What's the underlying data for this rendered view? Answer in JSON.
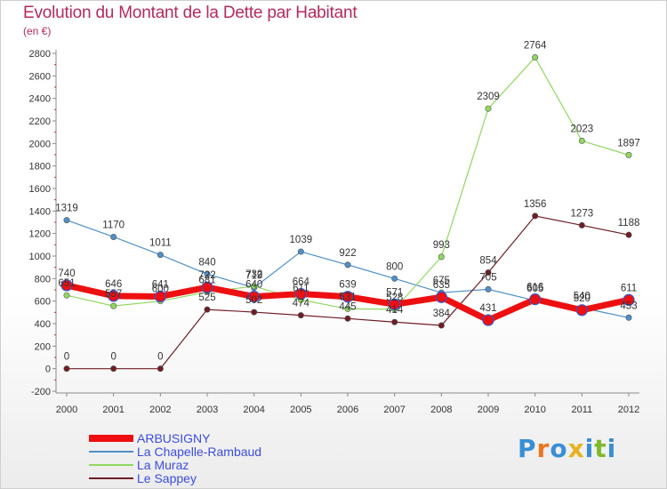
{
  "header": {
    "title": "Evolution du Montant de la Dette par Habitant",
    "subtitle": "(en €)"
  },
  "logo": {
    "text": "Proxiti",
    "colors": [
      "#3a8ed6",
      "#e8771f",
      "#3a8ed6",
      "#e8b21f",
      "#3a8ed6",
      "#7fb829",
      "#3a8ed6"
    ]
  },
  "chart_data": {
    "type": "line",
    "title": "Evolution du Montant de la Dette par Habitant",
    "subtitle": "(en €)",
    "x": [
      "2000",
      "2001",
      "2002",
      "2003",
      "2004",
      "2005",
      "2006",
      "2007",
      "2008",
      "2009",
      "2010",
      "2011",
      "2012"
    ],
    "ylim": [
      -200,
      2800
    ],
    "yticks": [
      -200,
      0,
      200,
      400,
      600,
      800,
      1000,
      1200,
      1400,
      1600,
      1800,
      2000,
      2200,
      2400,
      2600,
      2800
    ],
    "grid": false,
    "legend_position": "bottom-left",
    "series": [
      {
        "name": "La Chapelle-Rambaud",
        "color": "#4f90c8",
        "width": 1.2,
        "values": [
          1319,
          1170,
          1011,
          840,
          719,
          1039,
          922,
          800,
          675,
          705,
          605,
          540,
          453
        ]
      },
      {
        "name": "La Muraz",
        "color": "#90d860",
        "width": 1.2,
        "values": [
          651,
          557,
          600,
          681,
          732,
          611,
          531,
          528,
          993,
          2309,
          2764,
          2023,
          1897
        ]
      },
      {
        "name": "Le Sappey",
        "color": "#6e1e24",
        "width": 1.2,
        "values": [
          0,
          0,
          0,
          525,
          502,
          474,
          445,
          414,
          384,
          854,
          1356,
          1273,
          1188
        ]
      },
      {
        "name": "ARBUSIGNY",
        "color": "#ee1010",
        "width": 7,
        "values": [
          740,
          646,
          641,
          722,
          640,
          664,
          639,
          571,
          635,
          431,
          616,
          520,
          611
        ]
      }
    ]
  }
}
